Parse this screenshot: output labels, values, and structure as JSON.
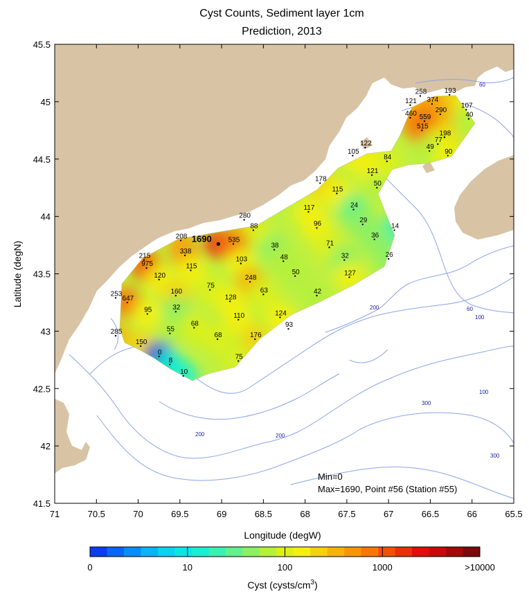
{
  "chart_data": {
    "type": "heatmap",
    "title": "Cyst Counts, Sediment layer 1cm",
    "subtitle": "Prediction, 2013",
    "xlabel": "Longitude (degW)",
    "ylabel": "Latitude (degN)",
    "xlim": [
      71,
      65.5
    ],
    "ylim": [
      41.5,
      45.5
    ],
    "xticks": [
      "71",
      "70.5",
      "70",
      "69.5",
      "69",
      "68.5",
      "68",
      "67.5",
      "67",
      "66.5",
      "66",
      "65.5"
    ],
    "yticks": [
      "41.5",
      "42",
      "42.5",
      "43",
      "43.5",
      "44",
      "44.5",
      "45",
      "45.5"
    ],
    "colorbar": {
      "label": "Cyst (cysts/cm",
      "label_sup": "3",
      "label_end": ")",
      "ticks": [
        "0",
        "10",
        "100",
        "1000",
        ">10000"
      ],
      "colors": [
        "#0a3cf0",
        "#0a64f5",
        "#0a8cf5",
        "#0ab4f5",
        "#0ad2f0",
        "#0ae6e6",
        "#14f0d2",
        "#3cf0b4",
        "#64f08c",
        "#8cf064",
        "#b4f03c",
        "#dcf014",
        "#f5f00a",
        "#f5d20a",
        "#f5b40a",
        "#f5960a",
        "#f5780a",
        "#f0500a",
        "#eb2d0a",
        "#e60a0a",
        "#c80a0a",
        "#a00a0a",
        "#780a0a"
      ]
    },
    "annotation_min": "Min=0",
    "annotation_max": "Max=1690, Point #56 (Station #55)",
    "contour_labels": [
      "60",
      "60",
      "100",
      "100",
      "200",
      "200",
      "200",
      "300",
      "300"
    ],
    "points": [
      {
        "lon": 66.62,
        "lat": 45.05,
        "value": "258"
      },
      {
        "lon": 66.27,
        "lat": 45.06,
        "value": "193"
      },
      {
        "lon": 66.74,
        "lat": 44.97,
        "value": "121"
      },
      {
        "lon": 66.48,
        "lat": 44.98,
        "value": "374"
      },
      {
        "lon": 66.07,
        "lat": 44.93,
        "value": "107"
      },
      {
        "lon": 66.38,
        "lat": 44.89,
        "value": "290"
      },
      {
        "lon": 66.04,
        "lat": 44.85,
        "value": "40"
      },
      {
        "lon": 66.74,
        "lat": 44.86,
        "value": "460"
      },
      {
        "lon": 66.57,
        "lat": 44.83,
        "value": "559"
      },
      {
        "lon": 66.6,
        "lat": 44.75,
        "value": "515"
      },
      {
        "lon": 66.33,
        "lat": 44.69,
        "value": "198"
      },
      {
        "lon": 66.41,
        "lat": 44.63,
        "value": "77"
      },
      {
        "lon": 66.51,
        "lat": 44.57,
        "value": "49"
      },
      {
        "lon": 66.29,
        "lat": 44.53,
        "value": "90"
      },
      {
        "lon": 67.28,
        "lat": 44.6,
        "value": "122"
      },
      {
        "lon": 67.43,
        "lat": 44.53,
        "value": "105"
      },
      {
        "lon": 67.02,
        "lat": 44.48,
        "value": "84"
      },
      {
        "lon": 67.2,
        "lat": 44.36,
        "value": "121"
      },
      {
        "lon": 67.82,
        "lat": 44.29,
        "value": "178"
      },
      {
        "lon": 67.14,
        "lat": 44.25,
        "value": "50"
      },
      {
        "lon": 67.62,
        "lat": 44.2,
        "value": "115"
      },
      {
        "lon": 67.96,
        "lat": 44.04,
        "value": "117"
      },
      {
        "lon": 68.73,
        "lat": 43.97,
        "value": "280"
      },
      {
        "lon": 67.42,
        "lat": 44.06,
        "value": "24"
      },
      {
        "lon": 67.31,
        "lat": 43.93,
        "value": "29"
      },
      {
        "lon": 68.62,
        "lat": 43.88,
        "value": "88"
      },
      {
        "lon": 67.86,
        "lat": 43.9,
        "value": "96"
      },
      {
        "lon": 66.93,
        "lat": 43.88,
        "value": "14"
      },
      {
        "lon": 69.49,
        "lat": 43.79,
        "value": "208"
      },
      {
        "lon": 69.04,
        "lat": 43.76,
        "value": "1690",
        "max": true
      },
      {
        "lon": 68.86,
        "lat": 43.76,
        "value": "535"
      },
      {
        "lon": 67.17,
        "lat": 43.8,
        "value": "36"
      },
      {
        "lon": 68.37,
        "lat": 43.71,
        "value": "38"
      },
      {
        "lon": 67.71,
        "lat": 43.73,
        "value": "71"
      },
      {
        "lon": 69.44,
        "lat": 43.66,
        "value": "338"
      },
      {
        "lon": 69.93,
        "lat": 43.62,
        "value": "215"
      },
      {
        "lon": 68.26,
        "lat": 43.61,
        "value": "48"
      },
      {
        "lon": 67.53,
        "lat": 43.62,
        "value": "32"
      },
      {
        "lon": 67.0,
        "lat": 43.63,
        "value": "26"
      },
      {
        "lon": 69.9,
        "lat": 43.55,
        "value": "975"
      },
      {
        "lon": 68.77,
        "lat": 43.59,
        "value": "103"
      },
      {
        "lon": 69.37,
        "lat": 43.53,
        "value": "115"
      },
      {
        "lon": 68.12,
        "lat": 43.48,
        "value": "50"
      },
      {
        "lon": 67.47,
        "lat": 43.47,
        "value": "127"
      },
      {
        "lon": 69.75,
        "lat": 43.45,
        "value": "120"
      },
      {
        "lon": 68.66,
        "lat": 43.43,
        "value": "248"
      },
      {
        "lon": 69.14,
        "lat": 43.36,
        "value": "75"
      },
      {
        "lon": 69.55,
        "lat": 43.31,
        "value": "160"
      },
      {
        "lon": 70.27,
        "lat": 43.29,
        "value": "253"
      },
      {
        "lon": 67.86,
        "lat": 43.31,
        "value": "42"
      },
      {
        "lon": 68.5,
        "lat": 43.32,
        "value": "63"
      },
      {
        "lon": 70.13,
        "lat": 43.25,
        "value": "647"
      },
      {
        "lon": 68.9,
        "lat": 43.26,
        "value": "128"
      },
      {
        "lon": 69.55,
        "lat": 43.17,
        "value": "32"
      },
      {
        "lon": 69.89,
        "lat": 43.15,
        "value": "95"
      },
      {
        "lon": 68.8,
        "lat": 43.1,
        "value": "110"
      },
      {
        "lon": 68.3,
        "lat": 43.12,
        "value": "124"
      },
      {
        "lon": 69.33,
        "lat": 43.03,
        "value": "68"
      },
      {
        "lon": 68.2,
        "lat": 43.02,
        "value": "93"
      },
      {
        "lon": 70.27,
        "lat": 42.96,
        "value": "285"
      },
      {
        "lon": 69.62,
        "lat": 42.98,
        "value": "55"
      },
      {
        "lon": 68.6,
        "lat": 42.93,
        "value": "176"
      },
      {
        "lon": 69.05,
        "lat": 42.93,
        "value": "68"
      },
      {
        "lon": 69.97,
        "lat": 42.87,
        "value": "150"
      },
      {
        "lon": 69.75,
        "lat": 42.78,
        "value": "0"
      },
      {
        "lon": 68.8,
        "lat": 42.74,
        "value": "75"
      },
      {
        "lon": 69.62,
        "lat": 42.71,
        "value": "8"
      },
      {
        "lon": 69.46,
        "lat": 42.61,
        "value": "10"
      }
    ]
  }
}
